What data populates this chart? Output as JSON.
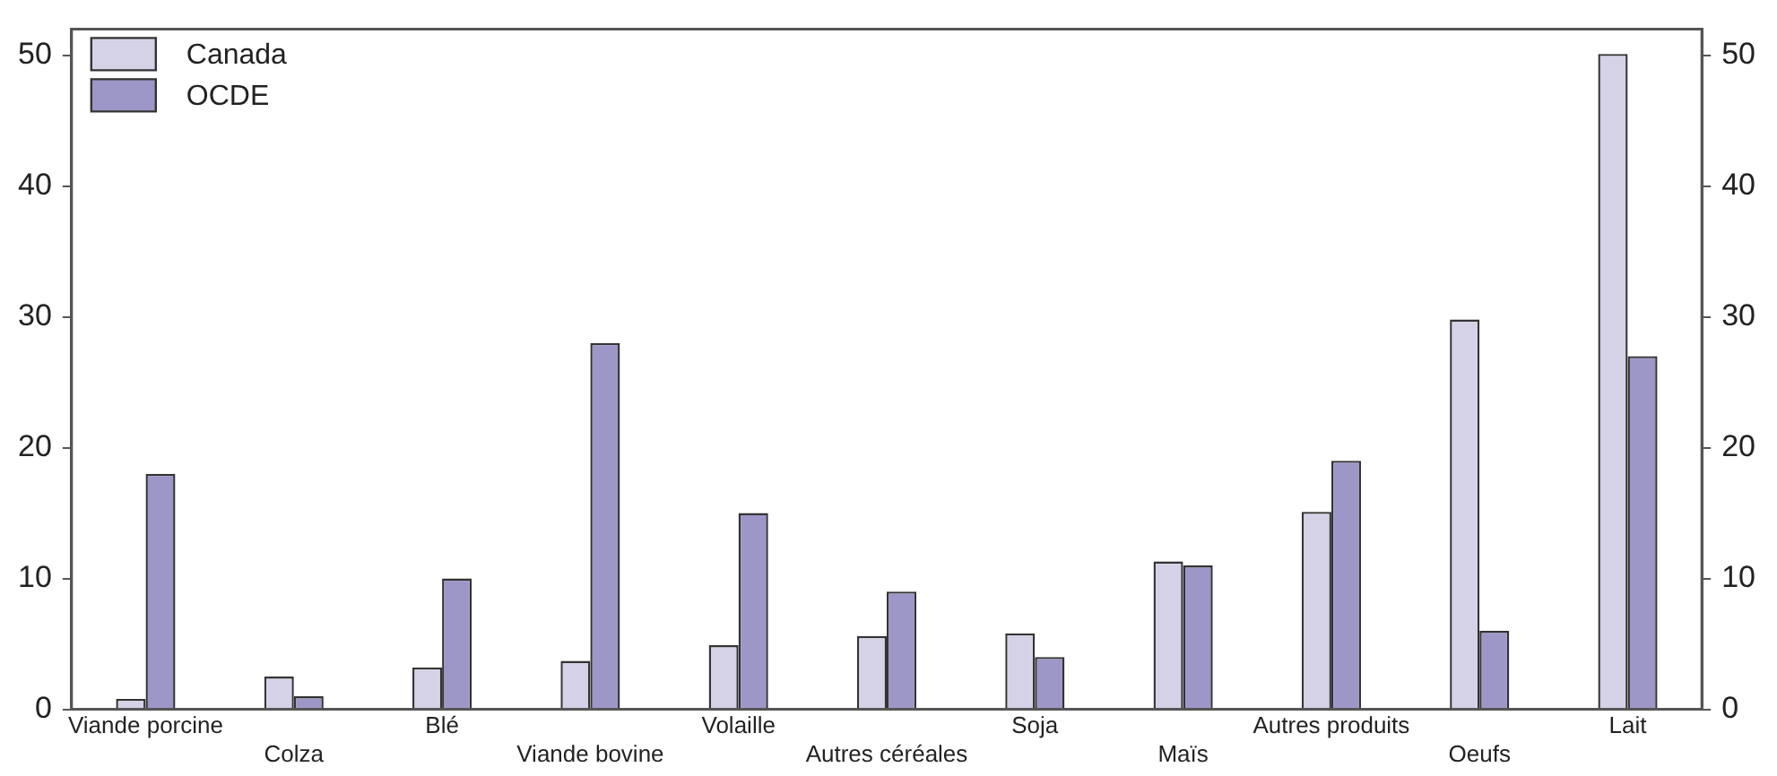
{
  "chart_data": {
    "type": "bar",
    "categories": [
      "Viande porcine",
      "Colza",
      "Blé",
      "Viande bovine",
      "Volaille",
      "Autres céréales",
      "Soja",
      "Maïs",
      "Autres produits",
      "Oeufs",
      "Lait"
    ],
    "series": [
      {
        "name": "Canada",
        "color": "#d5d2e8",
        "values": [
          0.8,
          2.5,
          3.2,
          3.7,
          4.9,
          5.6,
          5.8,
          11.3,
          15.1,
          29.8,
          50.1
        ]
      },
      {
        "name": "OCDE",
        "color": "#9d97c8",
        "values": [
          18,
          1,
          10,
          28,
          15,
          9,
          4,
          11,
          19,
          6,
          27
        ]
      }
    ],
    "ylim": [
      0,
      52
    ],
    "yticks": [
      0,
      10,
      20,
      30,
      40,
      50
    ],
    "y2lim": [
      0,
      52
    ],
    "y2ticks": [
      0,
      10,
      20,
      30,
      40,
      50
    ],
    "grid": false,
    "legend": "top left"
  }
}
